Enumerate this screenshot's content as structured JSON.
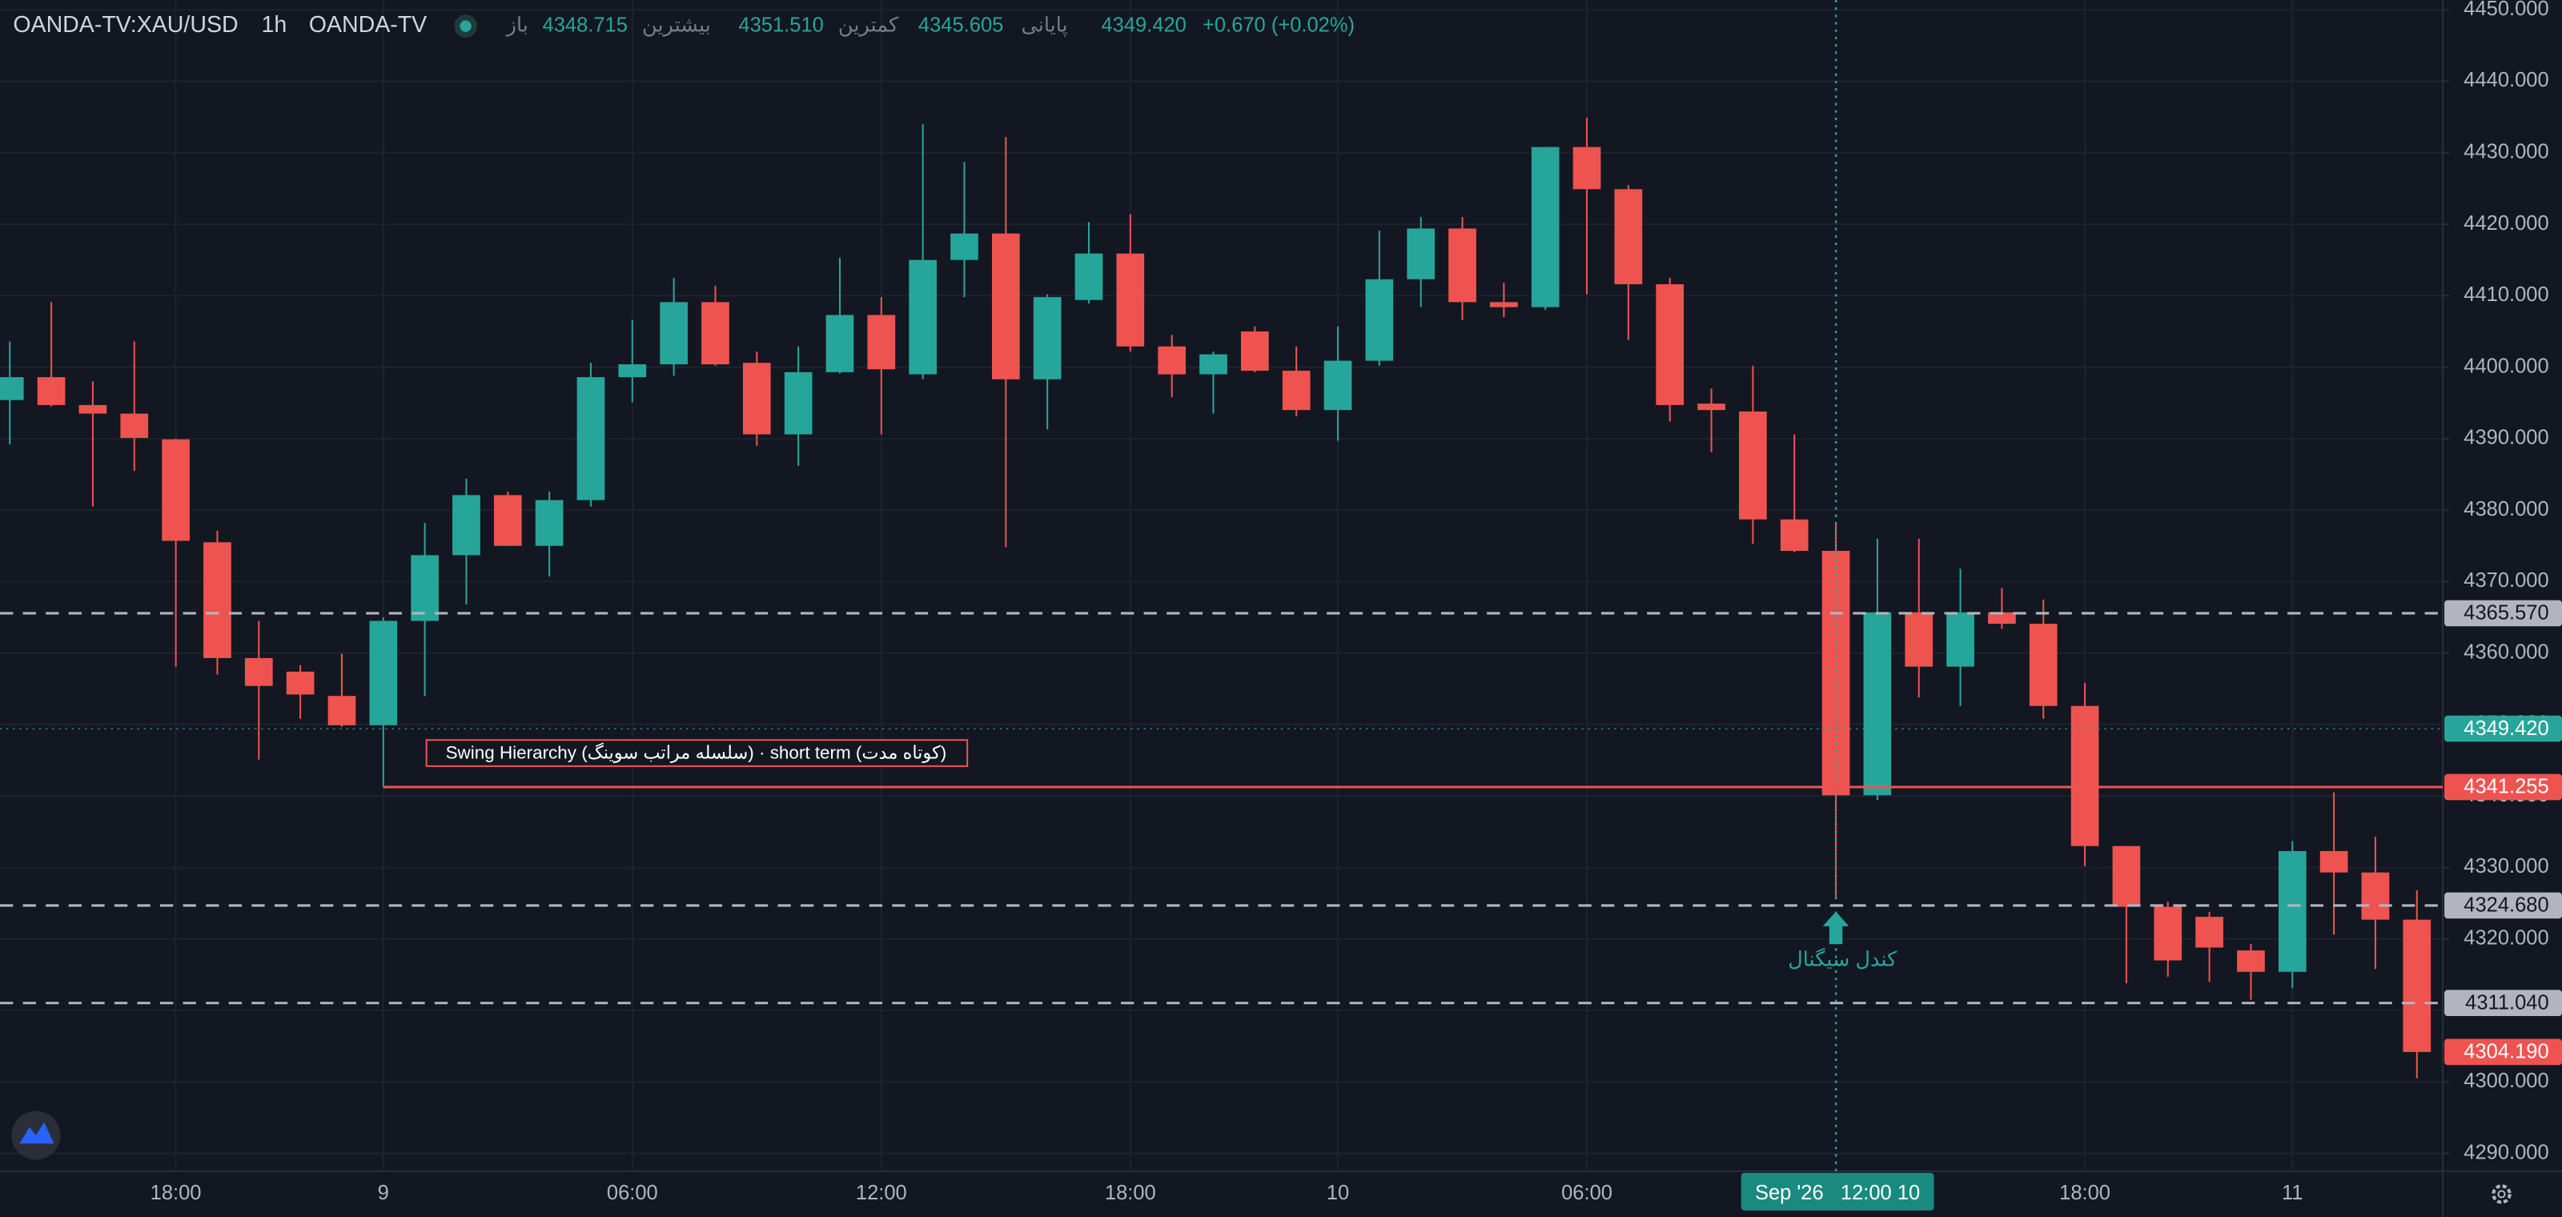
{
  "header": {
    "symbol": "OANDA-TV:XAU/USD",
    "interval": "1h",
    "source": "OANDA-TV",
    "ohlc": [
      {
        "label": "باز",
        "value": "4348.715"
      },
      {
        "label": "بیشترین",
        "value": "4351.510"
      },
      {
        "label": "کمترین",
        "value": "4345.605"
      },
      {
        "label": "پایانی",
        "value": "4349.420"
      }
    ],
    "change": "+0.670 (+0.02%)"
  },
  "chart_data": {
    "type": "candlestick",
    "categories": [
      null,
      null,
      null,
      null,
      "18:00",
      null,
      null,
      null,
      null,
      "9",
      null,
      null,
      null,
      null,
      null,
      "06:00",
      null,
      null,
      null,
      null,
      null,
      "12:00",
      null,
      null,
      null,
      null,
      null,
      "18:00",
      null,
      null,
      null,
      null,
      "10",
      null,
      null,
      null,
      null,
      null,
      "06:00",
      null,
      null,
      null,
      null,
      null,
      null,
      null,
      null,
      null,
      null,
      null,
      "18:00",
      null,
      null,
      null,
      null,
      "11",
      null,
      null,
      null
    ],
    "series": [
      {
        "name": "open",
        "values": [
          4395.4,
          4398.6,
          4394.7,
          4393.5,
          4389.9,
          4375.5,
          4359.3,
          4357.4,
          4354.0,
          4349.9,
          4364.5,
          4373.7,
          4382.1,
          4375.0,
          4381.4,
          4398.6,
          4400.4,
          4409.1,
          4400.6,
          4390.6,
          4399.3,
          4407.3,
          4399.0,
          4415.0,
          4418.7,
          4398.3,
          4409.4,
          4415.9,
          4402.9,
          4399.0,
          4405.0,
          4399.5,
          4394.0,
          4400.9,
          4412.3,
          4419.4,
          4409.1,
          4408.4,
          4430.8,
          4424.9,
          4411.6,
          4394.9,
          4393.8,
          4378.7,
          4374.3,
          4340.1,
          4365.7,
          4358.1,
          4365.7,
          4364.1,
          4352.6,
          4333.0,
          4324.5,
          4323.1,
          4318.4,
          4315.4,
          4332.3,
          4329.3,
          4322.7
        ]
      },
      {
        "name": "high",
        "values": [
          4403.6,
          4409.1,
          4398.0,
          4403.6,
          4390.0,
          4377.1,
          4364.5,
          4358.3,
          4359.9,
          4365.0,
          4378.2,
          4384.4,
          4382.6,
          4382.6,
          4400.6,
          4406.6,
          4412.5,
          4411.4,
          4402.2,
          4402.9,
          4415.3,
          4409.8,
          4434.0,
          4428.7,
          4432.2,
          4410.2,
          4420.3,
          4421.4,
          4404.5,
          4402.2,
          4405.7,
          4402.9,
          4405.7,
          4419.1,
          4421.0,
          4421.0,
          4411.8,
          4430.8,
          4434.9,
          4425.5,
          4412.5,
          4397.0,
          4400.2,
          4390.6,
          4378.2,
          4376.0,
          4376.0,
          4371.8,
          4369.1,
          4367.5,
          4355.8,
          4333.0,
          4325.2,
          4323.8,
          4319.3,
          4333.7,
          4340.5,
          4334.3,
          4326.8
        ]
      },
      {
        "name": "low",
        "values": [
          4389.2,
          4394.5,
          4380.5,
          4385.5,
          4358.1,
          4357.0,
          4345.1,
          4350.8,
          4349.7,
          4349.7,
          4354.0,
          4366.8,
          4375.0,
          4370.7,
          4380.5,
          4395.1,
          4398.8,
          4400.2,
          4389.0,
          4386.2,
          4399.1,
          4390.6,
          4398.3,
          4409.8,
          4374.8,
          4391.3,
          4408.9,
          4402.2,
          4395.8,
          4393.5,
          4399.3,
          4393.1,
          4389.7,
          4400.2,
          4408.4,
          4406.6,
          4407.0,
          4408.0,
          4410.2,
          4403.8,
          4392.4,
          4388.1,
          4375.3,
          4374.1,
          4325.7,
          4339.4,
          4353.8,
          4352.6,
          4363.4,
          4350.8,
          4330.2,
          4313.8,
          4314.7,
          4314.0,
          4311.5,
          4313.1,
          4320.6,
          4315.8,
          4300.5
        ]
      },
      {
        "name": "close",
        "values": [
          4398.6,
          4394.7,
          4393.5,
          4390.1,
          4375.7,
          4359.3,
          4355.4,
          4354.2,
          4349.9,
          4364.5,
          4373.7,
          4382.1,
          4375.0,
          4381.4,
          4398.6,
          4400.4,
          4409.1,
          4400.4,
          4390.6,
          4399.3,
          4407.3,
          4399.7,
          4415.0,
          4418.7,
          4398.3,
          4409.8,
          4415.9,
          4402.9,
          4399.0,
          4401.8,
          4399.5,
          4394.0,
          4400.9,
          4412.3,
          4419.4,
          4409.1,
          4408.4,
          4430.8,
          4424.9,
          4411.6,
          4394.7,
          4394.0,
          4378.7,
          4374.3,
          4340.1,
          4365.7,
          4358.1,
          4365.7,
          4364.1,
          4352.6,
          4333.0,
          4324.5,
          4317.0,
          4318.8,
          4315.4,
          4332.3,
          4329.3,
          4322.7,
          4304.19
        ]
      }
    ],
    "up_color": "#26a69a",
    "down_color": "#ef5350",
    "ylim": [
      4287.5,
      4451.37
    ],
    "yticks": [
      {
        "value": 4290,
        "label": "4290.000"
      },
      {
        "value": 4300,
        "label": "4300.000"
      },
      {
        "value": 4310,
        "label": "4310.000"
      },
      {
        "value": 4320,
        "label": "4320.000"
      },
      {
        "value": 4330,
        "label": "4330.000"
      },
      {
        "value": 4340,
        "label": "4340.000"
      },
      {
        "value": 4350,
        "label": "4350.000"
      },
      {
        "value": 4360,
        "label": "4360.000"
      },
      {
        "value": 4370,
        "label": "4370.000"
      },
      {
        "value": 4380,
        "label": "4380.000"
      },
      {
        "value": 4390,
        "label": "4390.000"
      },
      {
        "value": 4400,
        "label": "4400.000"
      },
      {
        "value": 4410,
        "label": "4410.000"
      },
      {
        "value": 4420,
        "label": "4420.000"
      },
      {
        "value": 4430,
        "label": "4430.000"
      },
      {
        "value": 4440,
        "label": "4440.000"
      },
      {
        "value": 4450,
        "label": "4450.000"
      }
    ],
    "grid": true,
    "levels": [
      {
        "value": 4365.57,
        "label": "4365.570",
        "color": "#b2b5be",
        "style": "dashed"
      },
      {
        "value": 4324.68,
        "label": "4324.680",
        "color": "#b2b5be",
        "style": "dashed"
      },
      {
        "value": 4311.04,
        "label": "4311.040",
        "color": "#b2b5be",
        "style": "dashed"
      },
      {
        "value": 4341.255,
        "label": "4341.255",
        "color": "#ef5350",
        "style": "solid"
      },
      {
        "value": 4349.42,
        "label": "4349.420",
        "color": "#26a69a",
        "style": "dotted"
      },
      {
        "value": 4304.19,
        "label": "4304.190",
        "color": "#ef5350",
        "style": "none"
      }
    ],
    "annotations": {
      "swing": "Swing Hierarchy (سلسله مراتب سوینگ) · short term (کوتاه مدت)",
      "signal": "کندل سیگنال",
      "crosshair_time": "Sep '26   12:00 10"
    }
  }
}
